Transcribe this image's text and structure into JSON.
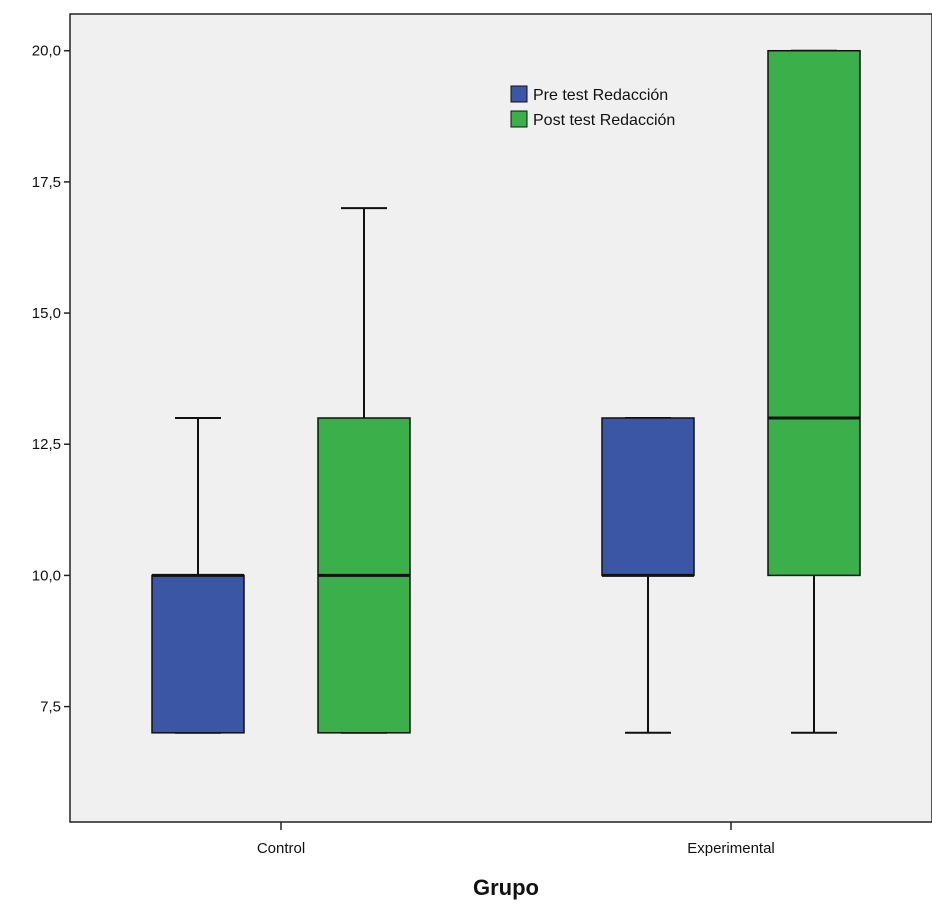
{
  "chart_data": {
    "type": "boxplot",
    "title": "",
    "xlabel": "Grupo",
    "ylabel": "",
    "categories": [
      "Control",
      "Experimental"
    ],
    "y_ticks": [
      "7,5",
      "10,0",
      "12,5",
      "15,0",
      "17,5",
      "20,0"
    ],
    "y_tick_values": [
      7.5,
      10.0,
      12.5,
      15.0,
      17.5,
      20.0
    ],
    "ylim": [
      5.3,
      20.7
    ],
    "grid": false,
    "legend_position": "top-center",
    "series": [
      {
        "name": "Pre test Redacción",
        "color": "#3b56a4",
        "boxes": [
          {
            "category": "Control",
            "min": 7.0,
            "q1": 7.0,
            "median": 10.0,
            "q3": 10.0,
            "max": 13.0
          },
          {
            "category": "Experimental",
            "min": 7.0,
            "q1": 10.0,
            "median": 10.0,
            "q3": 13.0,
            "max": 13.0
          }
        ]
      },
      {
        "name": "Post test Redacción",
        "color": "#3bb04a",
        "boxes": [
          {
            "category": "Control",
            "min": 7.0,
            "q1": 7.0,
            "median": 10.0,
            "q3": 13.0,
            "max": 17.0
          },
          {
            "category": "Experimental",
            "min": 7.0,
            "q1": 10.0,
            "median": 13.0,
            "q3": 20.0,
            "max": 20.0
          }
        ]
      }
    ],
    "plot_background": "#f0f0f0"
  }
}
